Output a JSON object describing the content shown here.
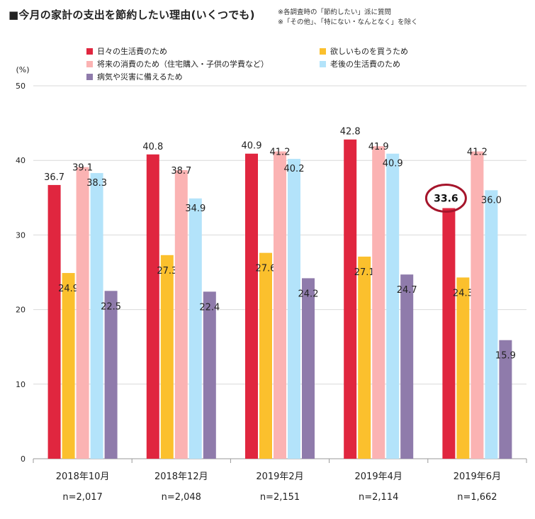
{
  "title": "■今月の家計の支出を節約したい理由(いくつでも)",
  "notes": [
    "※各調査時の「節約したい」派に質問",
    "※「その他」、「特にない・なんとなく」を除く"
  ],
  "chart_data": {
    "type": "bar",
    "ylabel": "(%)",
    "ylim": [
      0,
      50
    ],
    "yticks": [
      0,
      10,
      20,
      30,
      40,
      50
    ],
    "categories": [
      "2018年10月",
      "2018年12月",
      "2019年2月",
      "2019年4月",
      "2019年6月"
    ],
    "sample_sizes": [
      "n=2,017",
      "n=2,048",
      "n=2,151",
      "n=2,114",
      "n=1,662"
    ],
    "series": [
      {
        "name": "日々の生活費のため",
        "color": "#e0263f",
        "values": [
          36.7,
          40.8,
          40.9,
          42.8,
          33.6
        ]
      },
      {
        "name": "欲しいものを買うため",
        "color": "#fbc02d",
        "values": [
          24.9,
          27.3,
          27.6,
          27.1,
          24.3
        ]
      },
      {
        "name": "将来の消費のため（住宅購入・子供の学費など）",
        "color": "#fbb3b3",
        "values": [
          39.1,
          38.7,
          41.2,
          41.9,
          41.2
        ]
      },
      {
        "name": "老後の生活費のため",
        "color": "#b3e3fa",
        "values": [
          38.3,
          34.9,
          40.2,
          40.9,
          36.0
        ]
      },
      {
        "name": "病気や災害に備えるため",
        "color": "#8f7bab",
        "values": [
          22.5,
          22.4,
          24.2,
          24.7,
          15.9
        ]
      }
    ],
    "highlight": {
      "series": 0,
      "category": 4,
      "label": "33.6"
    }
  }
}
